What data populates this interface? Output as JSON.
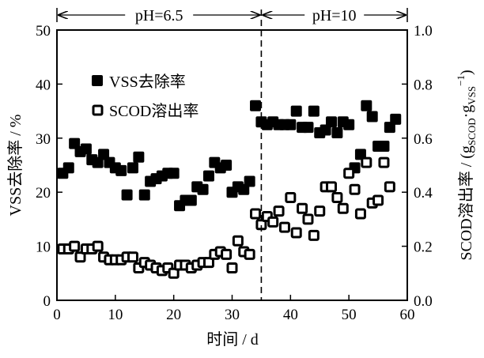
{
  "chart_data": {
    "type": "scatter",
    "xlabel": "时间 / d",
    "ylabel_left": "VSS去除率 / %",
    "ylabel_right": {
      "main": "SCOD溶出率 / (g",
      "sub1": "SCOD",
      "mid": "·g",
      "sub2": "VSS",
      "sup": "−1",
      "end": ")"
    },
    "xlim": [
      0,
      60
    ],
    "ylim_left": [
      0,
      50
    ],
    "ylim_right": [
      0,
      1.0
    ],
    "xticks": [
      "0",
      "10",
      "20",
      "30",
      "40",
      "50",
      "60"
    ],
    "yticks_left": [
      "0",
      "10",
      "20",
      "30",
      "40",
      "50"
    ],
    "yticks_right": [
      "0.0",
      "0.2",
      "0.4",
      "0.6",
      "0.8",
      "1.0"
    ],
    "phase_divider_x": 35,
    "phases": [
      {
        "label": "pH=6.5",
        "range": [
          0,
          35
        ]
      },
      {
        "label": "pH=10",
        "range": [
          35,
          60
        ]
      }
    ],
    "legend_position": "top-left",
    "series": [
      {
        "name": "VSS去除率",
        "marker": "filled-square",
        "axis": "left",
        "x": [
          1,
          2,
          3,
          4,
          5,
          6,
          7,
          8,
          9,
          10,
          11,
          12,
          13,
          14,
          15,
          16,
          17,
          18,
          19,
          20,
          21,
          22,
          23,
          24,
          25,
          26,
          27,
          28,
          29,
          30,
          31,
          32,
          33,
          34,
          35,
          36,
          37,
          38,
          39,
          40,
          41,
          42,
          43,
          44,
          45,
          46,
          47,
          48,
          49,
          50,
          51,
          52,
          53,
          54,
          55,
          56,
          57,
          58
        ],
        "y": [
          23.5,
          24.5,
          29,
          27.5,
          28,
          26,
          25.5,
          27,
          25.5,
          24.5,
          24,
          19.5,
          24.5,
          26.5,
          19.5,
          22,
          22.5,
          23,
          23.5,
          23.5,
          17.5,
          18.5,
          18.5,
          21,
          20.5,
          23,
          25.5,
          24.5,
          25,
          20,
          21,
          20.5,
          22,
          36,
          33,
          32.5,
          33,
          32.5,
          32.5,
          32.5,
          35,
          32,
          32,
          35,
          31,
          31.5,
          33,
          31,
          33,
          32.5,
          24.5,
          27,
          36,
          34,
          28.5,
          28.5,
          32,
          33.5
        ]
      },
      {
        "name": "SCOD溶出率",
        "marker": "open-square",
        "axis": "right",
        "x": [
          1,
          2,
          3,
          4,
          5,
          6,
          7,
          8,
          9,
          10,
          11,
          12,
          13,
          14,
          15,
          16,
          17,
          18,
          19,
          20,
          21,
          22,
          23,
          24,
          25,
          26,
          27,
          28,
          29,
          30,
          31,
          32,
          33,
          34,
          35,
          36,
          37,
          38,
          39,
          40,
          41,
          42,
          43,
          44,
          45,
          46,
          47,
          48,
          49,
          50,
          51,
          52,
          53,
          54,
          55,
          56,
          57
        ],
        "y": [
          0.19,
          0.19,
          0.2,
          0.16,
          0.19,
          0.19,
          0.2,
          0.16,
          0.15,
          0.15,
          0.15,
          0.16,
          0.16,
          0.12,
          0.14,
          0.13,
          0.12,
          0.11,
          0.12,
          0.1,
          0.13,
          0.13,
          0.12,
          0.13,
          0.14,
          0.14,
          0.17,
          0.18,
          0.17,
          0.12,
          0.22,
          0.18,
          0.17,
          0.32,
          0.28,
          0.31,
          0.29,
          0.33,
          0.27,
          0.38,
          0.25,
          0.34,
          0.3,
          0.24,
          0.33,
          0.42,
          0.42,
          0.38,
          0.34,
          0.47,
          0.41,
          0.32,
          0.51,
          0.36,
          0.37,
          0.51,
          0.42
        ]
      }
    ]
  }
}
